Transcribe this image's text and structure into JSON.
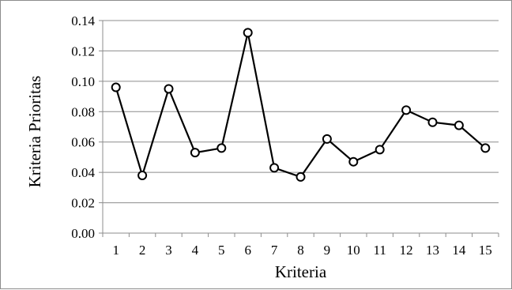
{
  "chart_data": {
    "type": "line",
    "title": "",
    "xlabel": "Kriteria",
    "ylabel": "Kriteria  Prioritas",
    "x": [
      1,
      2,
      3,
      4,
      5,
      6,
      7,
      8,
      9,
      10,
      11,
      12,
      13,
      14,
      15
    ],
    "categories": [
      "1",
      "2",
      "3",
      "4",
      "5",
      "6",
      "7",
      "8",
      "9",
      "10",
      "11",
      "12",
      "13",
      "14",
      "15"
    ],
    "series": [
      {
        "values": [
          0.096,
          0.038,
          0.095,
          0.053,
          0.056,
          0.132,
          0.043,
          0.037,
          0.062,
          0.047,
          0.055,
          0.081,
          0.073,
          0.071,
          0.056
        ]
      }
    ],
    "ylim": [
      0,
      0.14
    ],
    "yticks": [
      0.0,
      0.02,
      0.04,
      0.06,
      0.08,
      0.1,
      0.12,
      0.14
    ],
    "ytick_labels": [
      "0.00",
      "0.02",
      "0.04",
      "0.06",
      "0.08",
      "0.10",
      "0.12",
      "0.14"
    ],
    "grid": "horizontal",
    "legend": "none",
    "marker": "open-circle",
    "colors": {
      "line": "#000000",
      "marker_fill": "#ffffff",
      "grid": "#8c8c8c",
      "axis": "#8c8c8c"
    }
  }
}
